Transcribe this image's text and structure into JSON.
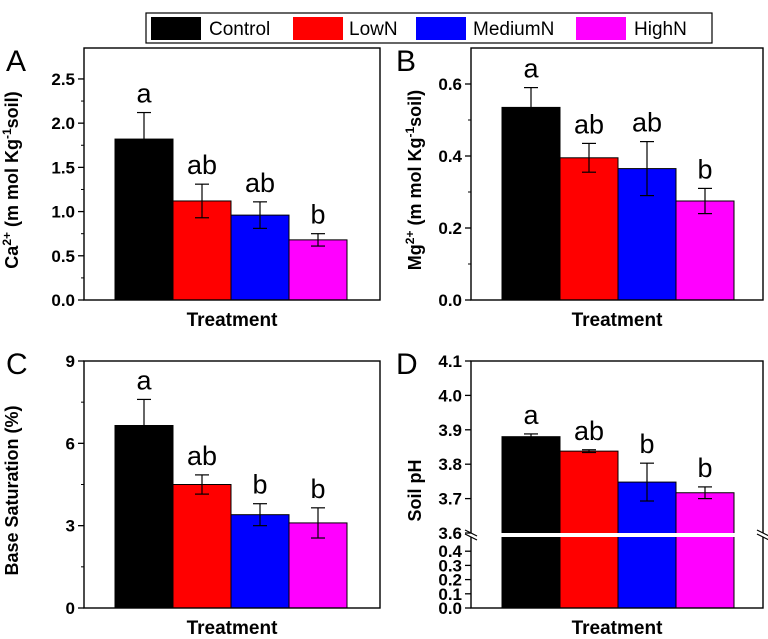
{
  "legend": {
    "entries": [
      {
        "name": "Control",
        "color": "#000000"
      },
      {
        "name": "LowN",
        "color": "#ff0000"
      },
      {
        "name": "MediumN",
        "color": "#0000ff"
      },
      {
        "name": "HighN",
        "color": "#ff00ff"
      }
    ]
  },
  "chart_data": [
    {
      "panel": "A",
      "type": "bar",
      "categories": [
        "Control",
        "LowN",
        "MediumN",
        "HighN"
      ],
      "values": [
        1.82,
        1.12,
        0.96,
        0.68
      ],
      "errors": [
        0.3,
        0.19,
        0.15,
        0.07
      ],
      "letters": [
        "a",
        "ab",
        "ab",
        "b"
      ],
      "xlabel": "Treatment",
      "ylabel": {
        "pre": "Ca",
        "sup1": "2+",
        "mid": " (m mol Kg",
        "sup2": "-1",
        "post": "soil)"
      },
      "ylim": [
        0,
        2.85
      ],
      "yticks": [
        "0.0",
        "0.5",
        "1.0",
        "1.5",
        "2.0",
        "2.5"
      ],
      "ytick_values": [
        0,
        0.5,
        1.0,
        1.5,
        2.0,
        2.5
      ]
    },
    {
      "panel": "B",
      "type": "bar",
      "categories": [
        "Control",
        "LowN",
        "MediumN",
        "HighN"
      ],
      "values": [
        0.535,
        0.395,
        0.365,
        0.275
      ],
      "errors": [
        0.055,
        0.04,
        0.075,
        0.035
      ],
      "letters": [
        "a",
        "ab",
        "ab",
        "b"
      ],
      "xlabel": "Treatment",
      "ylabel": {
        "pre": "Mg",
        "sup1": "2+",
        "mid": " (m mol Kg",
        "sup2": "-1",
        "post": "soil)"
      },
      "ylim": [
        0,
        0.7
      ],
      "yticks": [
        "0.0",
        "0.2",
        "0.4",
        "0.6"
      ],
      "ytick_values": [
        0,
        0.2,
        0.4,
        0.6
      ]
    },
    {
      "panel": "C",
      "type": "bar",
      "categories": [
        "Control",
        "LowN",
        "MediumN",
        "HighN"
      ],
      "values": [
        6.65,
        4.5,
        3.4,
        3.1
      ],
      "errors": [
        0.95,
        0.35,
        0.4,
        0.55
      ],
      "letters": [
        "a",
        "ab",
        "b",
        "b"
      ],
      "xlabel": "Treatment",
      "ylabel": {
        "pre": "Base Saturation (%)"
      },
      "ylim": [
        0,
        9
      ],
      "yticks": [
        "0",
        "3",
        "6",
        "9"
      ],
      "ytick_values": [
        0,
        3,
        6,
        9
      ]
    },
    {
      "panel": "D",
      "type": "bar",
      "categories": [
        "Control",
        "LowN",
        "MediumN",
        "HighN"
      ],
      "values": [
        3.88,
        3.838,
        3.748,
        3.717
      ],
      "errors": [
        0.008,
        0.004,
        0.055,
        0.017
      ],
      "letters": [
        "a",
        "ab",
        "b",
        "b"
      ],
      "xlabel": "Treatment",
      "ylabel": {
        "pre": "Soil pH"
      },
      "broken_axis": true,
      "lower_ylim": [
        0,
        0.5
      ],
      "upper_ylim": [
        3.6,
        4.1
      ],
      "yticks_lower": [
        "0.0",
        "0.1",
        "0.2",
        "0.3",
        "0.4"
      ],
      "ytick_values_lower": [
        0,
        0.1,
        0.2,
        0.3,
        0.4
      ],
      "yticks_upper": [
        "3.6",
        "3.7",
        "3.8",
        "3.9",
        "4.0",
        "4.1"
      ],
      "ytick_values_upper": [
        3.6,
        3.7,
        3.8,
        3.9,
        4.0,
        4.1
      ]
    }
  ]
}
